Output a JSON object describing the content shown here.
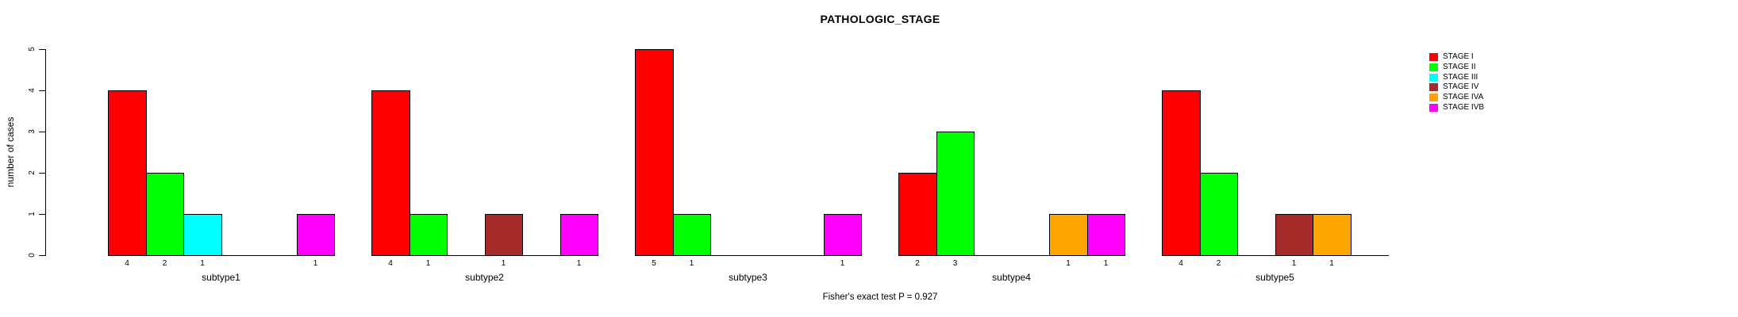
{
  "title": "PATHOLOGIC_STAGE",
  "y_axis": {
    "label": "number of cases",
    "ticks": [
      0,
      1,
      2,
      3,
      4,
      5
    ]
  },
  "footer": "Fisher's exact test P = 0.927",
  "legend": {
    "position": "top-right",
    "entries": [
      {
        "label": "STAGE I",
        "color": "#FF0000"
      },
      {
        "label": "STAGE II",
        "color": "#00FF00"
      },
      {
        "label": "STAGE III",
        "color": "#00FFFF"
      },
      {
        "label": "STAGE IV",
        "color": "#A52A2A"
      },
      {
        "label": "STAGE IVA",
        "color": "#FFA500"
      },
      {
        "label": "STAGE IVB",
        "color": "#FF00FF"
      }
    ]
  },
  "chart_data": {
    "type": "bar",
    "title": "PATHOLOGIC_STAGE",
    "xlabel": "",
    "ylabel": "number of cases",
    "ylim": [
      0,
      5
    ],
    "yticks": [
      0,
      1,
      2,
      3,
      4,
      5
    ],
    "grid": false,
    "legend_position": "top-right",
    "categories": [
      "subtype1",
      "subtype2",
      "subtype3",
      "subtype4",
      "subtype5"
    ],
    "series": [
      {
        "name": "STAGE I",
        "color": "#FF0000",
        "values": [
          4,
          4,
          5,
          2,
          4
        ]
      },
      {
        "name": "STAGE II",
        "color": "#00FF00",
        "values": [
          2,
          1,
          1,
          3,
          2
        ]
      },
      {
        "name": "STAGE III",
        "color": "#00FFFF",
        "values": [
          1,
          0,
          0,
          0,
          0
        ]
      },
      {
        "name": "STAGE IV",
        "color": "#A52A2A",
        "values": [
          0,
          1,
          0,
          0,
          1
        ]
      },
      {
        "name": "STAGE IVA",
        "color": "#FFA500",
        "values": [
          0,
          0,
          0,
          1,
          1
        ]
      },
      {
        "name": "STAGE IVB",
        "color": "#FF00FF",
        "values": [
          1,
          1,
          1,
          1,
          0
        ]
      }
    ],
    "bar_value_labels_visible": true,
    "annotation": "Fisher's exact test P = 0.927"
  }
}
